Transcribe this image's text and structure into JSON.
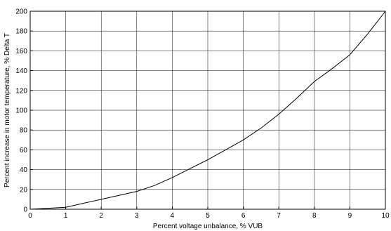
{
  "chart_data": {
    "type": "line",
    "title": "",
    "xlabel": "Percent voltage unbalance, % VUB",
    "ylabel": "Percent increase in motor temperature, % Delta T",
    "xlim": [
      0,
      10
    ],
    "ylim": [
      0,
      200
    ],
    "x_ticks": [
      0,
      1,
      2,
      3,
      4,
      5,
      6,
      7,
      8,
      9,
      10
    ],
    "y_ticks": [
      0,
      20,
      40,
      60,
      80,
      100,
      120,
      140,
      160,
      180,
      200
    ],
    "grid": true,
    "series": [
      {
        "x": [
          0,
          0.5,
          1,
          1.5,
          2,
          2.5,
          3,
          3.5,
          4,
          4.5,
          5,
          5.5,
          6,
          6.5,
          7,
          7.5,
          8,
          8.5,
          9,
          9.5,
          10
        ],
        "y": [
          0,
          1,
          2,
          6,
          10,
          14,
          18,
          24,
          32,
          41,
          50,
          60,
          70,
          82,
          96,
          112,
          129,
          142,
          156,
          177,
          200
        ]
      }
    ]
  }
}
